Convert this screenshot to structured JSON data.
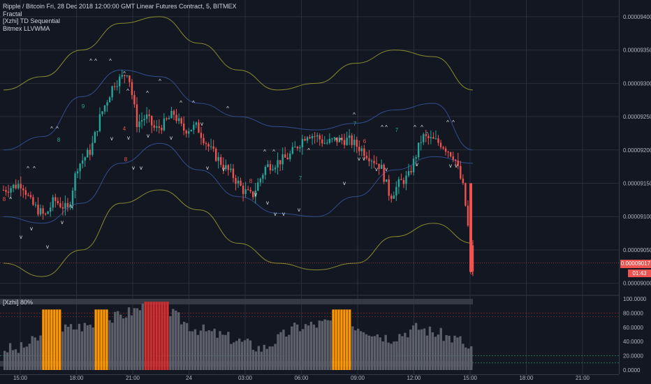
{
  "legend": {
    "title": "Ripple / Bitcoin Fri, 28 Dec 2018 12:00:00 GMT Linear Futures Contract, 5, BITMEX",
    "indicators": [
      "Fractal",
      "[Xzhi] TD Sequential",
      "Bitmex LLVWMA"
    ]
  },
  "oscillator": {
    "label": "[Xzhi] 80%"
  },
  "price_axis": [
    "0.00009400",
    "0.00009350",
    "0.00009300",
    "0.00009250",
    "0.00009200",
    "0.00009150",
    "0.00009100",
    "0.00009050",
    "0.00009000"
  ],
  "last_price": "0.00009017",
  "countdown": "01:43",
  "osc_axis": [
    "100.0000",
    "80.0000",
    "60.0000",
    "40.0000",
    "20.0000",
    "0.0000"
  ],
  "time_axis": [
    "15:00",
    "18:00",
    "21:00",
    "24",
    "03:00",
    "06:00",
    "09:00",
    "12:00",
    "15:00",
    "18:00",
    "21:00"
  ],
  "colors": {
    "bg": "#131722",
    "up": "#26a69a",
    "down": "#ef5350",
    "band_outer": "#8a8a2e",
    "band_inner": "#2f4f8f",
    "orange": "#ff9800",
    "red": "#d32f2f",
    "grey": "#5d606b"
  },
  "chart_data": {
    "type": "candlestick",
    "price_ylim": [
      8.985e-05,
      9.425e-05
    ],
    "candle_close_path": [
      [
        0,
        9.14e-05
      ],
      [
        4,
        9.15e-05
      ],
      [
        6,
        9.12e-05
      ],
      [
        9,
        9.1e-05
      ],
      [
        11,
        9.125e-05
      ],
      [
        14,
        9.11e-05
      ],
      [
        16,
        9.175e-05
      ],
      [
        19,
        9.2e-05
      ],
      [
        21,
        9.25e-05
      ],
      [
        24,
        9.3e-05
      ],
      [
        26,
        9.31e-05
      ],
      [
        27,
        9.32e-05
      ],
      [
        29,
        9.24e-05
      ],
      [
        31,
        9.25e-05
      ],
      [
        33,
        9.23e-05
      ],
      [
        35,
        9.24e-05
      ],
      [
        37,
        9.255e-05
      ],
      [
        39,
        9.23e-05
      ],
      [
        42,
        9.235e-05
      ],
      [
        45,
        9.2e-05
      ],
      [
        48,
        9.175e-05
      ],
      [
        50,
        9.16e-05
      ],
      [
        52,
        9.14e-05
      ],
      [
        54,
        9.13e-05
      ],
      [
        57,
        9.175e-05
      ],
      [
        59,
        9.18e-05
      ],
      [
        62,
        9.19e-05
      ],
      [
        66,
        9.225e-05
      ],
      [
        68,
        9.22e-05
      ],
      [
        70,
        9.21e-05
      ],
      [
        72,
        9.215e-05
      ],
      [
        75,
        9.215e-05
      ],
      [
        78,
        9.2e-05
      ],
      [
        82,
        9.175e-05
      ],
      [
        84,
        9.13e-05
      ],
      [
        86,
        9.15e-05
      ],
      [
        88,
        9.16e-05
      ],
      [
        91,
        9.22e-05
      ],
      [
        95,
        9.21e-05
      ],
      [
        98,
        9.19e-05
      ],
      [
        100,
        9.14e-05
      ],
      [
        102,
        9.02e-05
      ]
    ],
    "band_outer_upper": [
      9.29e-05,
      9.31e-05,
      9.35e-05,
      9.39e-05,
      9.4e-05,
      9.36e-05,
      9.32e-05,
      9.29e-05,
      9.3e-05,
      9.33e-05,
      9.35e-05,
      9.34e-05,
      9.29e-05
    ],
    "band_outer_lower": [
      9.03e-05,
      9.01e-05,
      9.05e-05,
      9.12e-05,
      9.14e-05,
      9.11e-05,
      9.06e-05,
      9.03e-05,
      9.02e-05,
      9.03e-05,
      9.07e-05,
      9.09e-05,
      9.06e-05
    ],
    "band_inner_upper": [
      9.2e-05,
      9.22e-05,
      9.28e-05,
      9.32e-05,
      9.31e-05,
      9.27e-05,
      9.25e-05,
      9.235e-05,
      9.23e-05,
      9.24e-05,
      9.26e-05,
      9.27e-05,
      9.2e-05
    ],
    "band_inner_lower": [
      9.1e-05,
      9.09e-05,
      9.12e-05,
      9.18e-05,
      9.21e-05,
      9.17e-05,
      9.13e-05,
      9.105e-05,
      9.1e-05,
      9.13e-05,
      9.17e-05,
      9.19e-05,
      9.18e-05
    ],
    "osc_ylim": [
      0,
      100
    ],
    "osc_levels": [
      80,
      75,
      20,
      10
    ],
    "osc_orange_ranges": [
      [
        8,
        12
      ],
      [
        19,
        22
      ],
      [
        70,
        74
      ]
    ],
    "osc_red_ranges": [
      [
        30,
        35
      ]
    ]
  }
}
